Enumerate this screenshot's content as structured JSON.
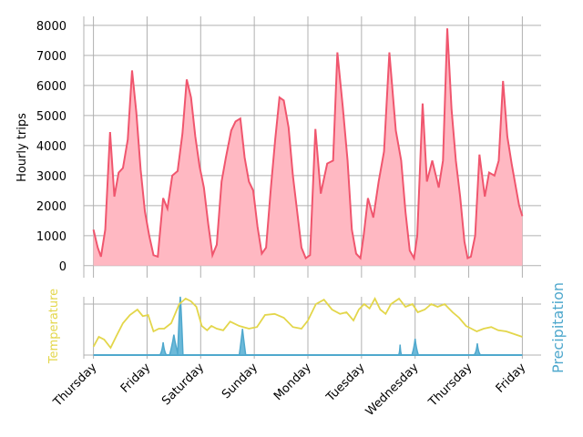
{
  "chart_data": [
    {
      "type": "area",
      "ylabel": "Hourly trips",
      "ylim": [
        -400,
        8300
      ],
      "yticks": [
        0,
        1000,
        2000,
        3000,
        4000,
        5000,
        6000,
        7000,
        8000
      ],
      "x_days": [
        "Thursday",
        "Friday",
        "Saturday",
        "Sunday",
        "Monday",
        "Tuesday",
        "Wednesday",
        "Thursday",
        "Friday"
      ],
      "xlim_days": [
        -0.18,
        8.35
      ],
      "grid": true,
      "colors": {
        "line": "#f0566e",
        "fill": "#ffb8c2"
      },
      "x_days_offset": [
        0,
        0.08,
        0.14,
        0.22,
        0.31,
        0.39,
        0.47,
        0.55,
        0.64,
        0.72,
        0.8,
        0.88,
        0.96,
        1.04,
        1.12,
        1.2,
        1.3,
        1.38,
        1.47,
        1.57,
        1.66,
        1.74,
        1.82,
        1.9,
        1.98,
        2.06,
        2.14,
        2.22,
        2.3,
        2.39,
        2.47,
        2.57,
        2.65,
        2.74,
        2.82,
        2.9,
        2.98,
        3.06,
        3.14,
        3.22,
        3.31,
        3.39,
        3.47,
        3.55,
        3.64,
        3.72,
        3.8,
        3.88,
        3.96,
        4.04,
        4.14,
        4.24,
        4.36,
        4.47,
        4.55,
        4.65,
        4.74,
        4.82,
        4.9,
        4.98,
        5.04,
        5.12,
        5.22,
        5.32,
        5.42,
        5.52,
        5.64,
        5.74,
        5.82,
        5.9,
        5.98,
        6.04,
        6.14,
        6.22,
        6.32,
        6.44,
        6.52,
        6.6,
        6.68,
        6.76,
        6.84,
        6.92,
        6.98,
        7.04,
        7.12,
        7.2,
        7.3,
        7.38,
        7.48,
        7.56,
        7.64,
        7.72,
        7.8,
        7.88,
        7.94,
        8.0
      ],
      "hourly_trips": [
        1200,
        600,
        300,
        1200,
        4450,
        2300,
        3100,
        3250,
        4200,
        6500,
        5100,
        3200,
        1800,
        1000,
        350,
        300,
        2250,
        1900,
        3000,
        3150,
        4400,
        6200,
        5600,
        4300,
        3300,
        2600,
        1400,
        350,
        700,
        2800,
        3600,
        4500,
        4800,
        4900,
        3600,
        2800,
        2500,
        1300,
        400,
        600,
        2600,
        4200,
        5600,
        5500,
        4600,
        3000,
        1800,
        600,
        250,
        350,
        4550,
        2400,
        3400,
        3500,
        7100,
        5300,
        3500,
        1200,
        400,
        250,
        1000,
        2250,
        1600,
        2800,
        3800,
        7100,
        4500,
        3500,
        1800,
        500,
        250,
        1000,
        5400,
        2800,
        3500,
        2600,
        3500,
        7900,
        5200,
        3500,
        2300,
        800,
        250,
        300,
        1000,
        3700,
        2300,
        3100,
        3000,
        3500,
        6150,
        4300,
        3400,
        2600,
        2000,
        1650
      ]
    },
    {
      "type": "area",
      "ylabel_left": "Temperature",
      "ylabel_right": "Precipitation",
      "grid": true,
      "colors": {
        "temperature": "#e3d64a",
        "precipitation": "#4fa8cd",
        "precip_fill": "#6cb9d9"
      },
      "temperature_x": [
        0,
        0.1,
        0.2,
        0.32,
        0.42,
        0.55,
        0.68,
        0.82,
        0.92,
        1.02,
        1.12,
        1.22,
        1.32,
        1.45,
        1.6,
        1.72,
        1.82,
        1.92,
        2.02,
        2.12,
        2.2,
        2.3,
        2.42,
        2.55,
        2.72,
        2.9,
        3.05,
        3.2,
        3.38,
        3.55,
        3.72,
        3.88,
        4.0,
        4.15,
        4.3,
        4.45,
        4.6,
        4.72,
        4.85,
        4.95,
        5.05,
        5.15,
        5.25,
        5.35,
        5.45,
        5.55,
        5.7,
        5.82,
        5.95,
        6.05,
        6.18,
        6.3,
        6.42,
        6.55,
        6.7,
        6.82,
        6.95,
        7.05,
        7.15,
        7.28,
        7.42,
        7.55,
        7.7,
        7.85,
        8.0
      ],
      "temperature": [
        0.12,
        0.3,
        0.25,
        0.1,
        0.3,
        0.55,
        0.7,
        0.8,
        0.68,
        0.7,
        0.4,
        0.45,
        0.45,
        0.55,
        0.9,
        1.0,
        0.95,
        0.85,
        0.5,
        0.42,
        0.5,
        0.45,
        0.42,
        0.58,
        0.5,
        0.45,
        0.48,
        0.7,
        0.72,
        0.65,
        0.48,
        0.45,
        0.6,
        0.9,
        0.98,
        0.8,
        0.72,
        0.75,
        0.6,
        0.8,
        0.9,
        0.82,
        1.0,
        0.8,
        0.72,
        0.9,
        1.0,
        0.85,
        0.9,
        0.75,
        0.8,
        0.9,
        0.85,
        0.9,
        0.75,
        0.65,
        0.5,
        0.45,
        0.4,
        0.45,
        0.48,
        0.42,
        0.4,
        0.35,
        0.3
      ],
      "precipitation_events": [
        {
          "x": 1.3,
          "width": 0.06,
          "height": 0.22
        },
        {
          "x": 1.5,
          "width": 0.08,
          "height": 0.35
        },
        {
          "x": 1.62,
          "width": 0.05,
          "height": 1.0
        },
        {
          "x": 2.78,
          "width": 0.06,
          "height": 0.45
        },
        {
          "x": 5.72,
          "width": 0.03,
          "height": 0.18
        },
        {
          "x": 6.0,
          "width": 0.06,
          "height": 0.28
        },
        {
          "x": 7.16,
          "width": 0.06,
          "height": 0.2
        }
      ]
    }
  ]
}
